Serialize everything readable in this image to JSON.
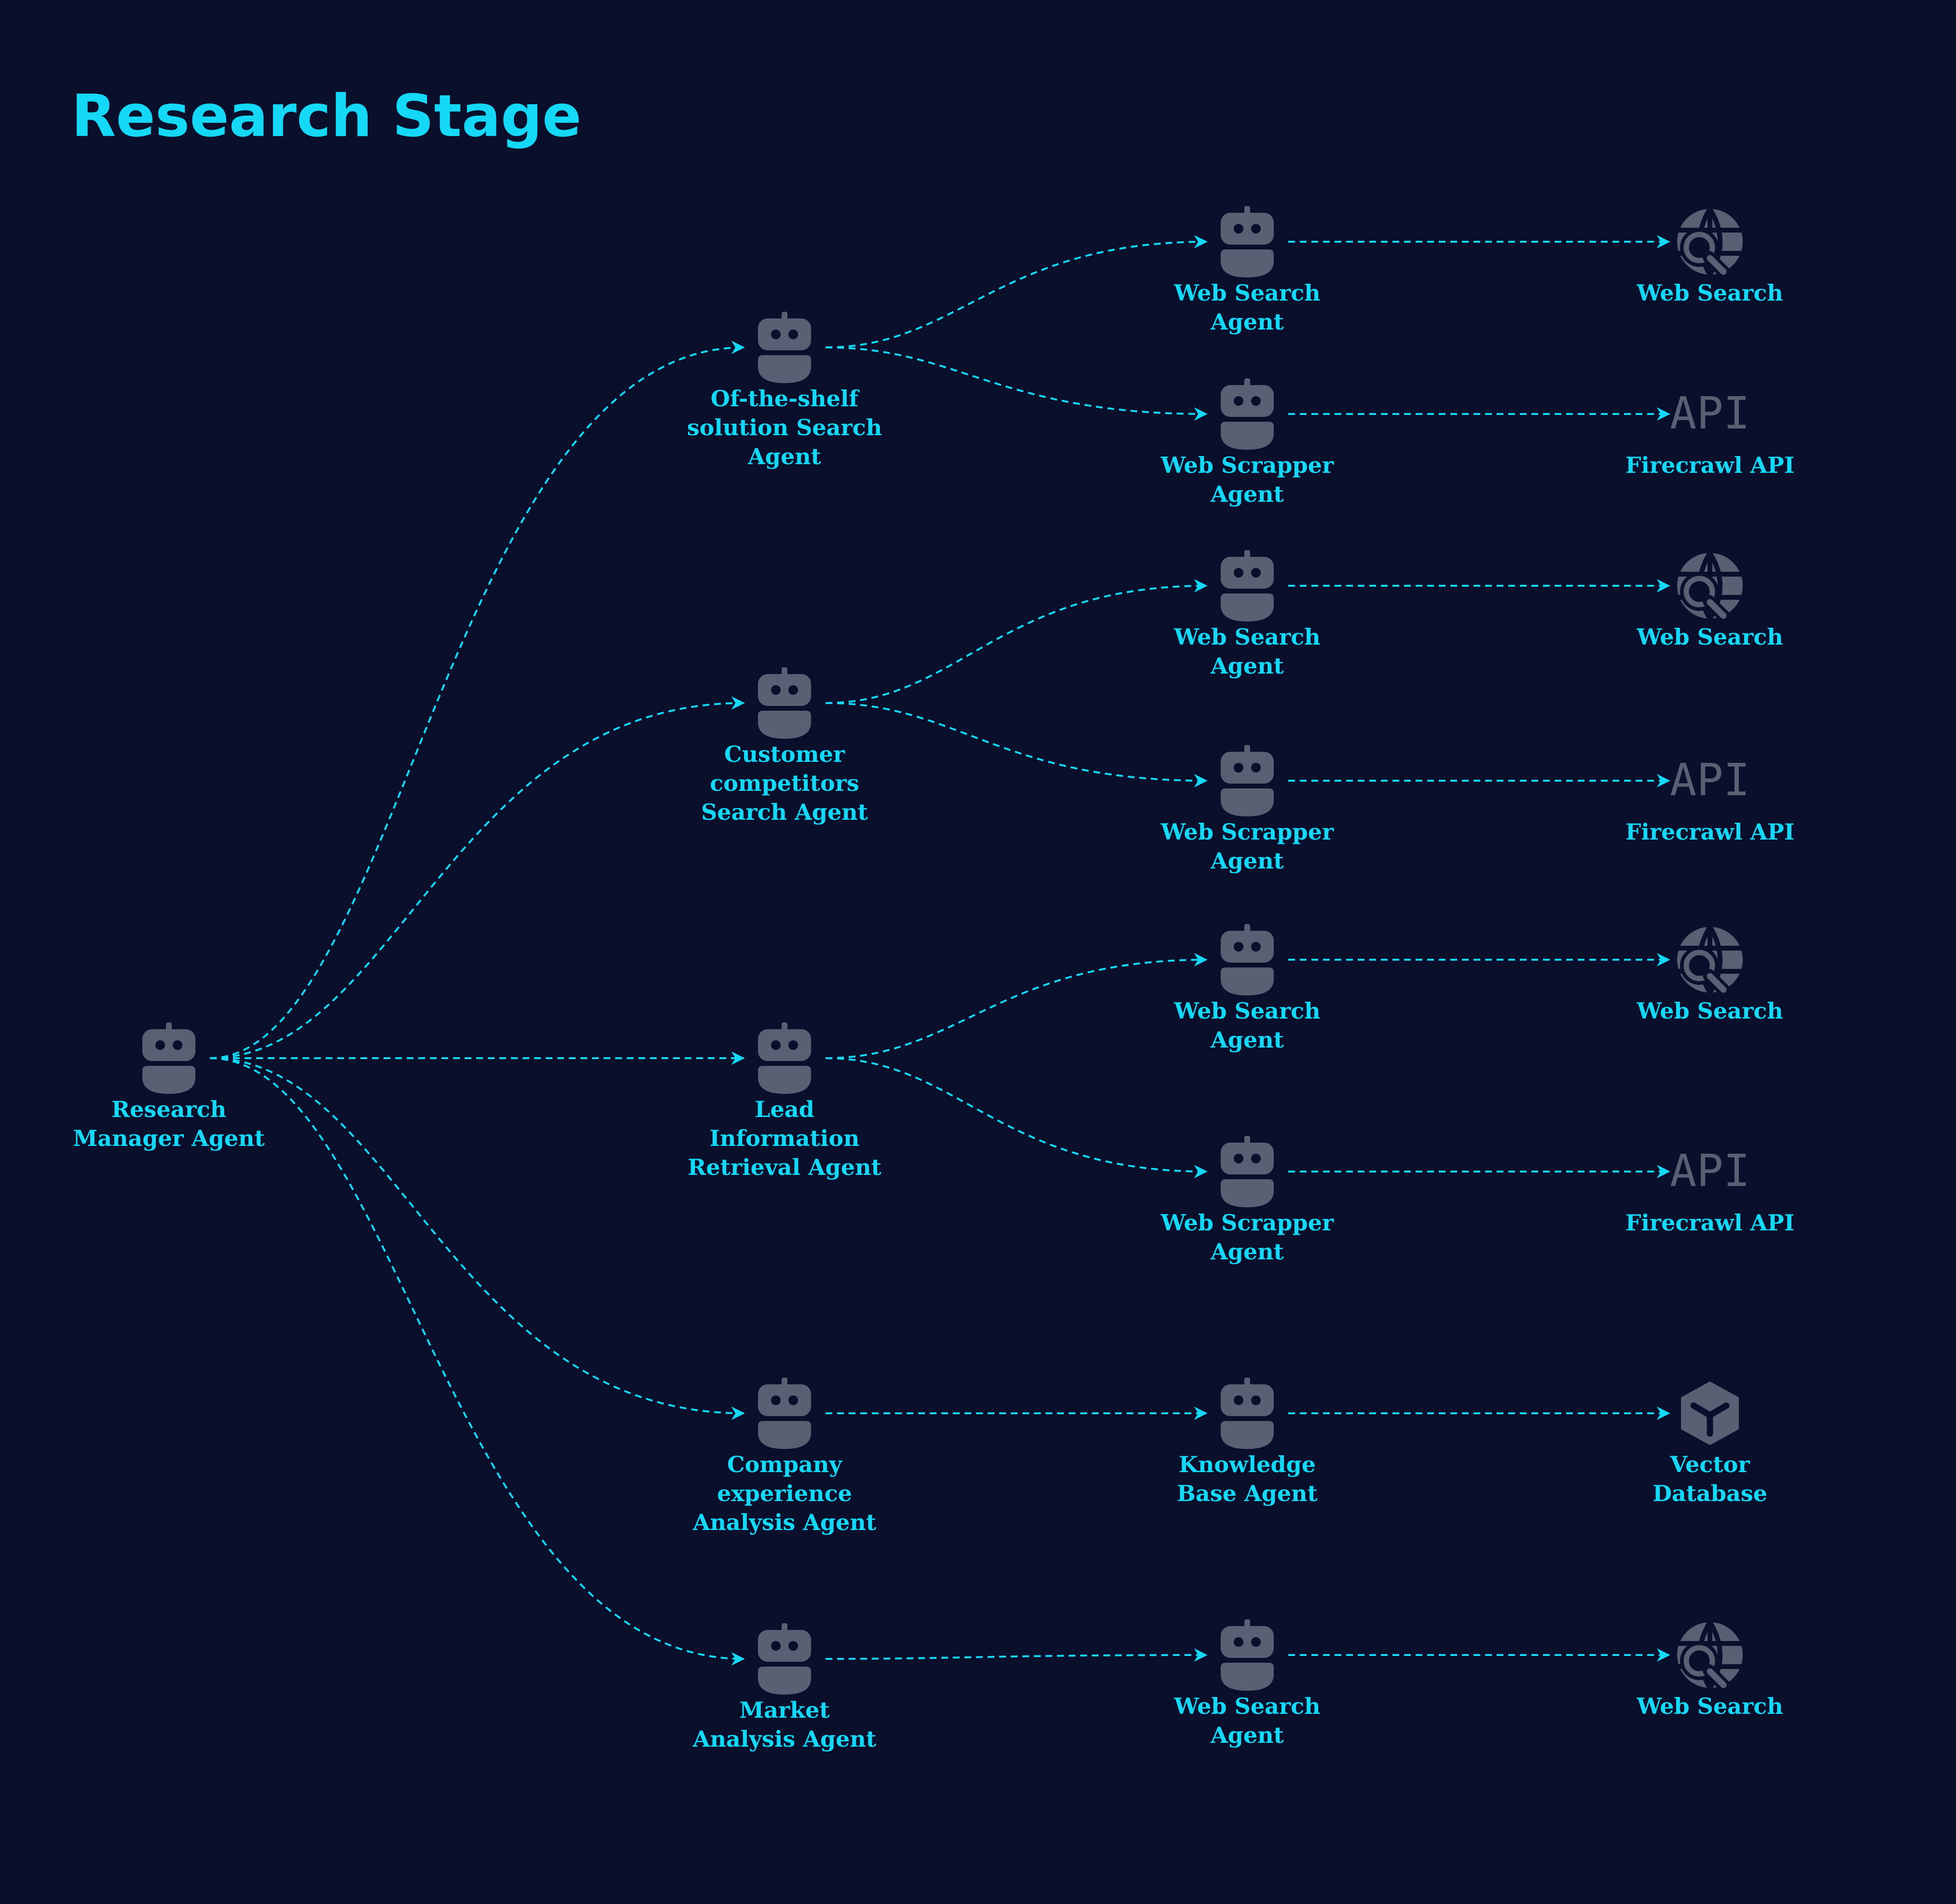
{
  "title": "Research Stage",
  "colors": {
    "background": "#0a0f2c",
    "accent": "#14d8f5",
    "icon": "#5a5f74"
  },
  "nodes": {
    "research_manager": {
      "icon": "robot-icon",
      "label": [
        "Research",
        "Manager Agent"
      ]
    },
    "ots_search": {
      "icon": "robot-icon",
      "label": [
        "Of-the-shelf",
        "solution Search",
        "Agent"
      ]
    },
    "customer_competitors": {
      "icon": "robot-icon",
      "label": [
        "Customer",
        "competitors",
        "Search Agent"
      ]
    },
    "lead_info": {
      "icon": "robot-icon",
      "label": [
        "Lead",
        "Information",
        "Retrieval Agent"
      ]
    },
    "company_experience": {
      "icon": "robot-icon",
      "label": [
        "Company",
        "experience",
        "Analysis Agent"
      ]
    },
    "market_analysis": {
      "icon": "robot-icon",
      "label": [
        "Market",
        "Analysis Agent"
      ]
    },
    "web_search_agent_1": {
      "icon": "robot-icon",
      "label": [
        "Web Search",
        "Agent"
      ]
    },
    "web_scrapper_agent_1": {
      "icon": "robot-icon",
      "label": [
        "Web Scrapper",
        "Agent"
      ]
    },
    "web_search_agent_2": {
      "icon": "robot-icon",
      "label": [
        "Web Search",
        "Agent"
      ]
    },
    "web_scrapper_agent_2": {
      "icon": "robot-icon",
      "label": [
        "Web Scrapper",
        "Agent"
      ]
    },
    "web_search_agent_3": {
      "icon": "robot-icon",
      "label": [
        "Web Search",
        "Agent"
      ]
    },
    "web_scrapper_agent_3": {
      "icon": "robot-icon",
      "label": [
        "Web Scrapper",
        "Agent"
      ]
    },
    "knowledge_base_agent": {
      "icon": "robot-icon",
      "label": [
        "Knowledge",
        "Base Agent"
      ]
    },
    "web_search_agent_4": {
      "icon": "robot-icon",
      "label": [
        "Web Search",
        "Agent"
      ]
    },
    "web_search_tool_1": {
      "icon": "globe-search-icon",
      "label": [
        "Web Search"
      ]
    },
    "firecrawl_api_1": {
      "icon": "api-icon",
      "icon_text": "API",
      "label": [
        "Firecrawl API"
      ]
    },
    "web_search_tool_2": {
      "icon": "globe-search-icon",
      "label": [
        "Web Search"
      ]
    },
    "firecrawl_api_2": {
      "icon": "api-icon",
      "icon_text": "API",
      "label": [
        "Firecrawl API"
      ]
    },
    "web_search_tool_3": {
      "icon": "globe-search-icon",
      "label": [
        "Web Search"
      ]
    },
    "firecrawl_api_3": {
      "icon": "api-icon",
      "icon_text": "API",
      "label": [
        "Firecrawl API"
      ]
    },
    "vector_database": {
      "icon": "cube-icon",
      "label": [
        "Vector",
        "Database"
      ]
    },
    "web_search_tool_4": {
      "icon": "globe-search-icon",
      "label": [
        "Web Search"
      ]
    }
  },
  "edges": [
    [
      "research_manager",
      "ots_search"
    ],
    [
      "research_manager",
      "customer_competitors"
    ],
    [
      "research_manager",
      "lead_info"
    ],
    [
      "research_manager",
      "company_experience"
    ],
    [
      "research_manager",
      "market_analysis"
    ],
    [
      "ots_search",
      "web_search_agent_1"
    ],
    [
      "ots_search",
      "web_scrapper_agent_1"
    ],
    [
      "customer_competitors",
      "web_search_agent_2"
    ],
    [
      "customer_competitors",
      "web_scrapper_agent_2"
    ],
    [
      "lead_info",
      "web_search_agent_3"
    ],
    [
      "lead_info",
      "web_scrapper_agent_3"
    ],
    [
      "company_experience",
      "knowledge_base_agent"
    ],
    [
      "market_analysis",
      "web_search_agent_4"
    ],
    [
      "web_search_agent_1",
      "web_search_tool_1"
    ],
    [
      "web_scrapper_agent_1",
      "firecrawl_api_1"
    ],
    [
      "web_search_agent_2",
      "web_search_tool_2"
    ],
    [
      "web_scrapper_agent_2",
      "firecrawl_api_2"
    ],
    [
      "web_search_agent_3",
      "web_search_tool_3"
    ],
    [
      "web_scrapper_agent_3",
      "firecrawl_api_3"
    ],
    [
      "knowledge_base_agent",
      "vector_database"
    ],
    [
      "web_search_agent_4",
      "web_search_tool_4"
    ]
  ]
}
